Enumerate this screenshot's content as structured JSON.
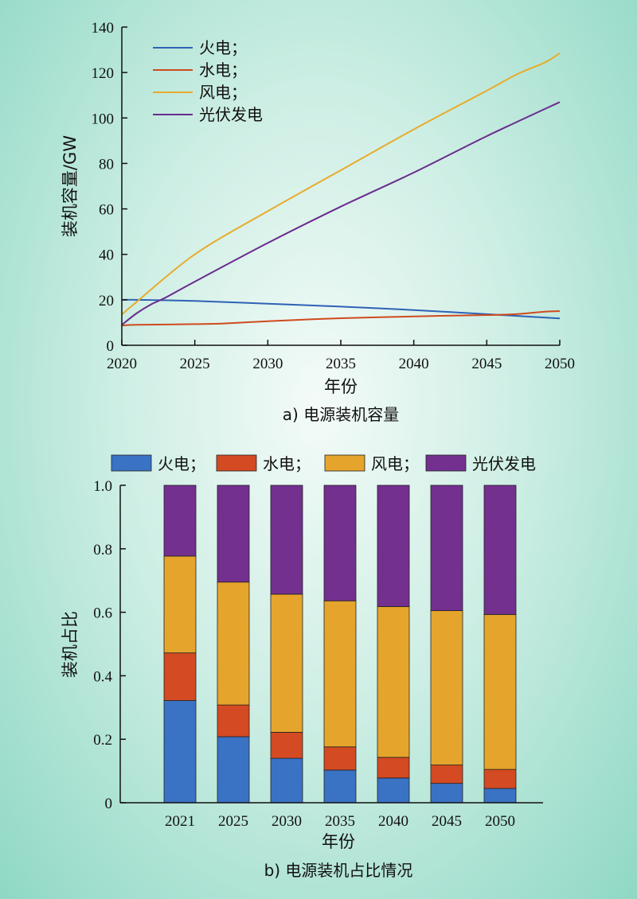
{
  "chart_data": [
    {
      "type": "line",
      "caption": "a) 电源装机容量",
      "xlabel": "年份",
      "ylabel": "装机容量/GW",
      "xlim": [
        2020,
        2050
      ],
      "ylim": [
        0,
        140
      ],
      "xticks": [
        2020,
        2025,
        2030,
        2035,
        2040,
        2045,
        2050
      ],
      "yticks": [
        0,
        20,
        40,
        60,
        80,
        100,
        120,
        140
      ],
      "legend_position": "top-left",
      "grid": false,
      "series": [
        {
          "name": "火电；",
          "color": "#2e62b5",
          "x": [
            2020,
            2021,
            2025,
            2030,
            2035,
            2040,
            2045,
            2050
          ],
          "y": [
            20.0,
            20.0,
            19.5,
            18.3,
            17.0,
            15.5,
            13.7,
            11.8
          ]
        },
        {
          "name": "水电；",
          "color": "#d04a1e",
          "x": [
            2020,
            2021,
            2025,
            2027,
            2030,
            2035,
            2040,
            2045,
            2047,
            2049,
            2050
          ],
          "y": [
            8.7,
            9.0,
            9.3,
            9.6,
            10.6,
            11.9,
            12.7,
            13.3,
            13.7,
            14.8,
            15.0
          ]
        },
        {
          "name": "风电；",
          "color": "#e8ab2c",
          "x": [
            2020,
            2021,
            2025,
            2030,
            2035,
            2040,
            2045,
            2047,
            2049,
            2050
          ],
          "y": [
            13.5,
            19.0,
            40.0,
            59.0,
            77.0,
            95.0,
            112.0,
            119.0,
            124.5,
            128.5
          ]
        },
        {
          "name": "光伏发电",
          "color": "#6a2b8f",
          "x": [
            2020,
            2021,
            2022,
            2023,
            2025,
            2030,
            2035,
            2040,
            2045,
            2050
          ],
          "y": [
            9.0,
            14.0,
            18.0,
            21.0,
            28.0,
            45.0,
            61.0,
            76.0,
            92.0,
            107.0
          ]
        }
      ]
    },
    {
      "type": "bar",
      "stacked": true,
      "caption": "b) 电源装机占比情况",
      "xlabel": "年份",
      "ylabel": "装机占比",
      "ylim": [
        0,
        1.0
      ],
      "yticks": [
        "0",
        "0.2",
        "0.4",
        "0.6",
        "0.8",
        "1.0"
      ],
      "legend_position": "top",
      "grid": false,
      "categories": [
        "2021",
        "2025",
        "2030",
        "2035",
        "2040",
        "2045",
        "2050"
      ],
      "series": [
        {
          "name": "火电；",
          "color": "#3a72c4",
          "values": [
            0.322,
            0.208,
            0.14,
            0.103,
            0.078,
            0.061,
            0.045
          ]
        },
        {
          "name": "水电；",
          "color": "#d44a22",
          "values": [
            0.15,
            0.1,
            0.082,
            0.073,
            0.065,
            0.058,
            0.06
          ]
        },
        {
          "name": "风电；",
          "color": "#e5a52c",
          "values": [
            0.305,
            0.387,
            0.435,
            0.46,
            0.475,
            0.486,
            0.488
          ]
        },
        {
          "name": "光伏发电",
          "color": "#73308f",
          "values": [
            0.223,
            0.305,
            0.343,
            0.364,
            0.382,
            0.395,
            0.407
          ]
        }
      ]
    }
  ]
}
